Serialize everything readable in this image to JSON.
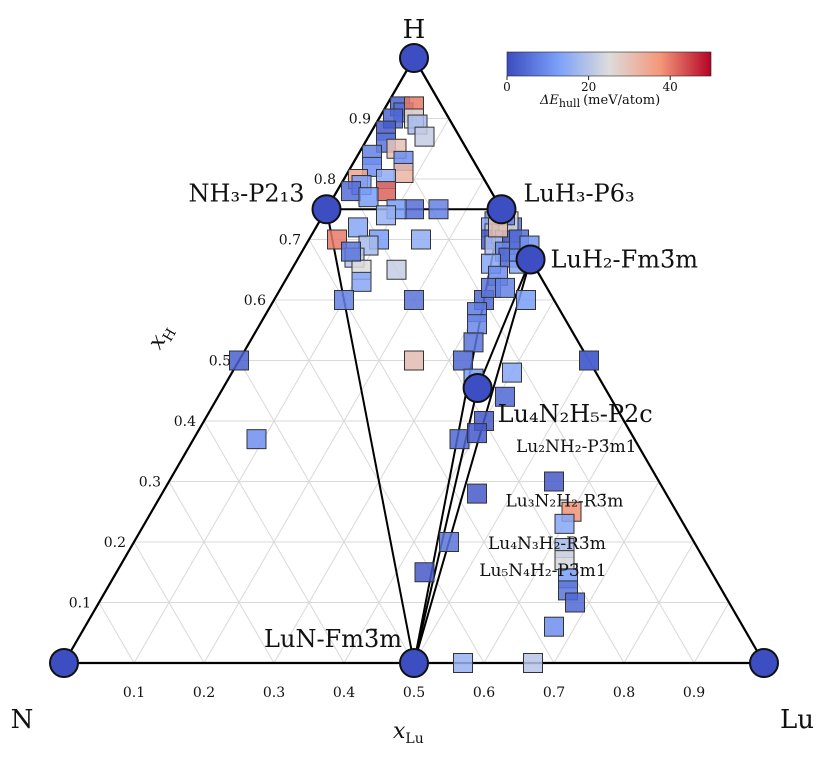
{
  "chart_data": {
    "type": "ternary-scatter",
    "corners": {
      "top": "H",
      "left": "N",
      "right": "Lu"
    },
    "axis_labels": {
      "x": "x",
      "x_sub": "Lu",
      "y": "x",
      "y_sub": "H"
    },
    "x_ticks": [
      "0.1",
      "0.2",
      "0.3",
      "0.4",
      "0.5",
      "0.6",
      "0.7",
      "0.8",
      "0.9"
    ],
    "h_ticks": [
      "0.1",
      "0.2",
      "0.3",
      "0.4",
      "0.5",
      "0.6",
      "0.7",
      "0.8",
      "0.9"
    ],
    "colorbar": {
      "ticks": [
        "0",
        "20",
        "40"
      ],
      "label_main": "ΔE",
      "label_sub": "hull",
      "label_unit": "(meV/atom)",
      "range": [
        0,
        50
      ],
      "colors": [
        "#3b4cc0",
        "#8db0fe",
        "#dddddd",
        "#f49a7b",
        "#b40426"
      ]
    },
    "stable_phases": [
      {
        "id": "H",
        "h": 1.0,
        "lu": 0.0,
        "show_label": false
      },
      {
        "id": "N",
        "h": 0.0,
        "lu": 0.0,
        "show_label": false
      },
      {
        "id": "Lu",
        "h": 0.0,
        "lu": 1.0,
        "show_label": false
      },
      {
        "id": "NH3",
        "h": 0.75,
        "lu": 0.0,
        "label": "NH₃-P2₁3",
        "size": "big"
      },
      {
        "id": "LuH3",
        "h": 0.75,
        "lu": 0.25,
        "label": "LuH₃-P6₃",
        "size": "big"
      },
      {
        "id": "LuH2",
        "h": 0.667,
        "lu": 0.333,
        "label": "LuH₂-Fm3̄m",
        "size": "big"
      },
      {
        "id": "Lu4N2H5",
        "h": 0.4545,
        "lu": 0.3636,
        "label": "Lu₄N₂H₅-P2c",
        "size": "big"
      },
      {
        "id": "LuN",
        "h": 0.0,
        "lu": 0.5,
        "label": "LuN-Fm3̄m",
        "size": "big"
      }
    ],
    "phase_annotations": [
      {
        "text": "Lu₂NH₂-P3̄m1",
        "h": 0.36,
        "lu": 0.44
      },
      {
        "text": "Lu₃N₂H₂-R3̄m",
        "h": 0.27,
        "lu": 0.47
      },
      {
        "text": "Lu₄N₃H₂-R3̄m",
        "h": 0.2,
        "lu": 0.48
      },
      {
        "text": "Lu₅N₄H₂-P3̄m1",
        "h": 0.155,
        "lu": 0.49
      }
    ],
    "hull_lines": [
      [
        "NH3",
        "LuH3"
      ],
      [
        "NH3",
        "LuN"
      ],
      [
        "LuH3",
        "LuN"
      ],
      [
        "LuH3",
        "LuH2"
      ],
      [
        "LuH2",
        "LuN"
      ],
      [
        "LuH2",
        "Lu4N2H5"
      ],
      [
        "Lu4N2H5",
        "LuN"
      ],
      [
        "H",
        "NH3"
      ],
      [
        "H",
        "LuH3"
      ]
    ],
    "points": [
      {
        "h": 0.92,
        "lu": 0.02,
        "e": 3
      },
      {
        "h": 0.91,
        "lu": 0.03,
        "e": 5
      },
      {
        "h": 0.9,
        "lu": 0.02,
        "e": 4
      },
      {
        "h": 0.88,
        "lu": 0.02,
        "e": 2
      },
      {
        "h": 0.86,
        "lu": 0.03,
        "e": 6
      },
      {
        "h": 0.84,
        "lu": 0.02,
        "e": 8
      },
      {
        "h": 0.82,
        "lu": 0.03,
        "e": 10
      },
      {
        "h": 0.8,
        "lu": 0.02,
        "e": 35
      },
      {
        "h": 0.79,
        "lu": 0.03,
        "e": 12
      },
      {
        "h": 0.78,
        "lu": 0.02,
        "e": 5
      },
      {
        "h": 0.92,
        "lu": 0.04,
        "e": 40
      },
      {
        "h": 0.9,
        "lu": 0.05,
        "e": 25
      },
      {
        "h": 0.89,
        "lu": 0.06,
        "e": 18
      },
      {
        "h": 0.87,
        "lu": 0.08,
        "e": 22
      },
      {
        "h": 0.85,
        "lu": 0.05,
        "e": 30
      },
      {
        "h": 0.83,
        "lu": 0.07,
        "e": 10
      },
      {
        "h": 0.81,
        "lu": 0.08,
        "e": 32
      },
      {
        "h": 0.8,
        "lu": 0.06,
        "e": 15
      },
      {
        "h": 0.78,
        "lu": 0.07,
        "e": 42
      },
      {
        "h": 0.77,
        "lu": 0.05,
        "e": 12
      },
      {
        "h": 0.75,
        "lu": 0.125,
        "e": 5
      },
      {
        "h": 0.75,
        "lu": 0.1,
        "e": 12
      },
      {
        "h": 0.74,
        "lu": 0.09,
        "e": 16
      },
      {
        "h": 0.72,
        "lu": 0.06,
        "e": 14
      },
      {
        "h": 0.7,
        "lu": 0.04,
        "e": 40
      },
      {
        "h": 0.7,
        "lu": 0.1,
        "e": 12
      },
      {
        "h": 0.69,
        "lu": 0.09,
        "e": 18
      },
      {
        "h": 0.67,
        "lu": 0.08,
        "e": 20
      },
      {
        "h": 0.65,
        "lu": 0.1,
        "e": 25
      },
      {
        "h": 0.65,
        "lu": 0.15,
        "e": 22
      },
      {
        "h": 0.7,
        "lu": 0.16,
        "e": 15
      },
      {
        "h": 0.75,
        "lu": 0.16,
        "e": 8
      },
      {
        "h": 0.63,
        "lu": 0.11,
        "e": 14
      },
      {
        "h": 0.68,
        "lu": 0.07,
        "e": 6
      },
      {
        "h": 0.6,
        "lu": 0.1,
        "e": 8
      },
      {
        "h": 0.6,
        "lu": 0.2,
        "e": 6
      },
      {
        "h": 0.6,
        "lu": 0.3,
        "e": 4
      },
      {
        "h": 0.5,
        "lu": 0.0,
        "e": 3
      },
      {
        "h": 0.5,
        "lu": 0.25,
        "e": 38
      },
      {
        "h": 0.5,
        "lu": 0.5,
        "e": 5
      },
      {
        "h": 0.5,
        "lu": 0.25,
        "e": 28
      },
      {
        "h": 0.73,
        "lu": 0.25,
        "e": 10
      },
      {
        "h": 0.72,
        "lu": 0.25,
        "e": 14
      },
      {
        "h": 0.71,
        "lu": 0.26,
        "e": 20
      },
      {
        "h": 0.7,
        "lu": 0.26,
        "e": 2
      },
      {
        "h": 0.71,
        "lu": 0.27,
        "e": 16
      },
      {
        "h": 0.7,
        "lu": 0.28,
        "e": 12
      },
      {
        "h": 0.69,
        "lu": 0.27,
        "e": 18
      },
      {
        "h": 0.72,
        "lu": 0.28,
        "e": 6
      },
      {
        "h": 0.7,
        "lu": 0.29,
        "e": 3
      },
      {
        "h": 0.73,
        "lu": 0.27,
        "e": 24
      },
      {
        "h": 0.74,
        "lu": 0.26,
        "e": 8
      },
      {
        "h": 0.72,
        "lu": 0.26,
        "e": 30
      },
      {
        "h": 0.68,
        "lu": 0.29,
        "e": 9
      },
      {
        "h": 0.67,
        "lu": 0.3,
        "e": 4
      },
      {
        "h": 0.66,
        "lu": 0.28,
        "e": 14
      },
      {
        "h": 0.64,
        "lu": 0.3,
        "e": 10
      },
      {
        "h": 0.62,
        "lu": 0.3,
        "e": 6
      },
      {
        "h": 0.58,
        "lu": 0.3,
        "e": 7
      },
      {
        "h": 0.56,
        "lu": 0.31,
        "e": 9
      },
      {
        "h": 0.53,
        "lu": 0.32,
        "e": 6
      },
      {
        "h": 0.5,
        "lu": 0.32,
        "e": 4
      },
      {
        "h": 0.47,
        "lu": 0.35,
        "e": 12
      },
      {
        "h": 0.48,
        "lu": 0.4,
        "e": 14
      },
      {
        "h": 0.4,
        "lu": 0.4,
        "e": 2
      },
      {
        "h": 0.37,
        "lu": 0.38,
        "e": 4
      },
      {
        "h": 0.6,
        "lu": 0.36,
        "e": 12
      },
      {
        "h": 0.5,
        "lu": 0.5,
        "e": 3
      },
      {
        "h": 0.62,
        "lu": 0.32,
        "e": 8
      },
      {
        "h": 0.66,
        "lu": 0.32,
        "e": 14
      },
      {
        "h": 0.68,
        "lu": 0.31,
        "e": 10
      },
      {
        "h": 0.7,
        "lu": 0.3,
        "e": 5
      },
      {
        "h": 0.69,
        "lu": 0.32,
        "e": 11
      },
      {
        "h": 0.3,
        "lu": 0.55,
        "e": 2
      },
      {
        "h": 0.28,
        "lu": 0.45,
        "e": 2
      },
      {
        "h": 0.25,
        "lu": 0.6,
        "e": 38
      },
      {
        "h": 0.23,
        "lu": 0.6,
        "e": 14
      },
      {
        "h": 0.2,
        "lu": 0.45,
        "e": 6
      },
      {
        "h": 0.19,
        "lu": 0.62,
        "e": 18
      },
      {
        "h": 0.17,
        "lu": 0.63,
        "e": 24
      },
      {
        "h": 0.15,
        "lu": 0.44,
        "e": 2
      },
      {
        "h": 0.14,
        "lu": 0.65,
        "e": 12
      },
      {
        "h": 0.12,
        "lu": 0.66,
        "e": 6
      },
      {
        "h": 0.1,
        "lu": 0.68,
        "e": 4
      },
      {
        "h": 0.06,
        "lu": 0.67,
        "e": 10
      },
      {
        "h": 0.0,
        "lu": 0.57,
        "e": 16
      },
      {
        "h": 0.0,
        "lu": 0.67,
        "e": 20
      },
      {
        "h": 0.37,
        "lu": 0.09,
        "e": 10
      },
      {
        "h": 0.44,
        "lu": 0.41,
        "e": 4
      },
      {
        "h": 0.38,
        "lu": 0.4,
        "e": 2
      }
    ]
  }
}
